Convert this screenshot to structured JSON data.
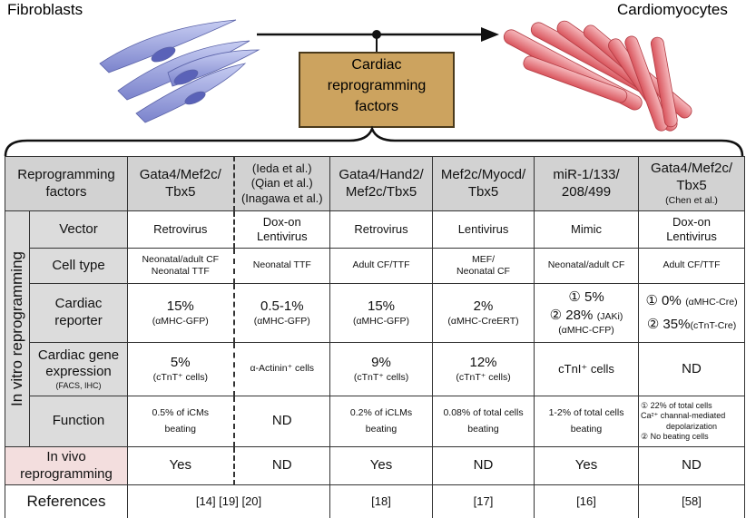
{
  "header": {
    "left_label": "Fibroblasts",
    "right_label": "Cardiomyocytes",
    "box": [
      "Cardiac",
      "reprogramming",
      "factors"
    ]
  },
  "table": {
    "corner": [
      "Reprogramming",
      "factors"
    ],
    "columns": [
      [
        "Gata4/Mef2c/",
        "Tbx5"
      ],
      [
        "(Ieda et al.)",
        "(Qian et al.)",
        "(Inagawa et al.)"
      ],
      [
        "Gata4/Hand2/",
        "Mef2c/Tbx5"
      ],
      [
        "Mef2c/Myocd/",
        "Tbx5"
      ],
      [
        "miR-1/133/",
        "208/499"
      ],
      [
        "Gata4/Mef2c/",
        "Tbx5",
        "(Chen et al.)"
      ]
    ],
    "group_label": "In vitro reprogramming",
    "rows": [
      {
        "label": [
          "Vector"
        ],
        "cells": [
          [
            "Retrovirus"
          ],
          [
            "Dox-on",
            "Lentivirus"
          ],
          [
            "Retrovirus"
          ],
          [
            "Lentivirus"
          ],
          [
            "Mimic"
          ],
          [
            "Dox-on",
            "Lentivirus"
          ]
        ]
      },
      {
        "label": [
          "Cell type"
        ],
        "cells": [
          [
            "Neonatal/adult CF",
            "Neonatal TTF"
          ],
          [
            "Neonatal TTF"
          ],
          [
            "Adult CF/TTF"
          ],
          [
            "MEF/",
            "Neonatal CF"
          ],
          [
            "Neonatal/adult CF"
          ],
          [
            "Adult CF/TTF"
          ]
        ]
      },
      {
        "label": [
          "Cardiac",
          "reporter"
        ],
        "cells": [
          [
            "15%",
            "(αMHC-GFP)"
          ],
          [
            "0.5-1%",
            "(αMHC-GFP)"
          ],
          [
            "15%",
            "(αMHC-GFP)"
          ],
          [
            "2%",
            "(αMHC-CreERT)"
          ],
          [
            "① 5%",
            "② 28%",
            "(JAKi)",
            "(αMHC-CFP)"
          ],
          [
            "① 0%",
            "(αMHC-Cre)",
            "② 35%",
            "(cTnT-Cre)"
          ]
        ]
      },
      {
        "label": [
          "Cardiac gene",
          "expression",
          "(FACS, IHC)"
        ],
        "cells": [
          [
            "5%",
            "(cTnT⁺ cells)"
          ],
          [
            "α-Actinin⁺ cells"
          ],
          [
            "9%",
            "(cTnT⁺ cells)"
          ],
          [
            "12%",
            "(cTnT⁺ cells)"
          ],
          [
            "cTnI⁺ cells"
          ],
          [
            "ND"
          ]
        ]
      },
      {
        "label": [
          "Function"
        ],
        "cells": [
          [
            "0.5% of iCMs",
            "beating"
          ],
          [
            "ND"
          ],
          [
            "0.2% of iCLMs",
            "beating"
          ],
          [
            "0.08% of total cells",
            "beating"
          ],
          [
            "1-2% of total cells",
            "beating"
          ],
          [
            "① 22% of total cells",
            "Ca²⁺ channal-mediated",
            "depolarization",
            "② No beating cells"
          ]
        ]
      }
    ],
    "in_vivo": {
      "label": [
        "In vivo",
        "reprogramming"
      ],
      "cells": [
        "Yes",
        "ND",
        "Yes",
        "ND",
        "Yes",
        "ND"
      ]
    },
    "references": {
      "label": "References",
      "cells": [
        "[14] [19] [20]",
        "[18]",
        "[17]",
        "[16]",
        "[58]"
      ]
    }
  }
}
